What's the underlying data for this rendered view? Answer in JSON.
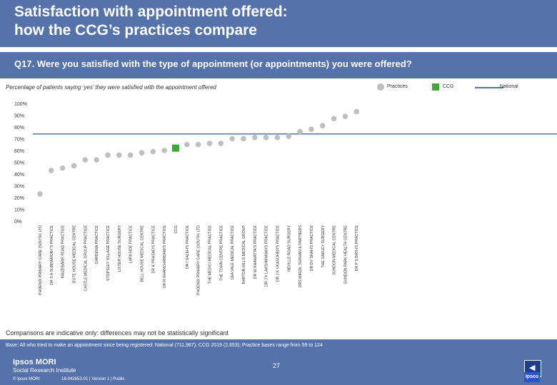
{
  "header": {
    "title_line1": "Satisfaction with appointment offered:",
    "title_line2": "how the CCG’s practices compare"
  },
  "question": "Q17. Were you satisfied with the type of appointment (or appointments) you were offered?",
  "subtitle": "Percentage of patients saying ‘yes’ they were satisfied with the appointment offered",
  "legend": {
    "practices": "Practices",
    "ccg": "CCG",
    "national": "National"
  },
  "colors": {
    "header": "#5572ab",
    "practice": "#bfbfbf",
    "ccg": "#3aaa35",
    "national": "#5572ab"
  },
  "chart_data": {
    "type": "scatter",
    "ylim": [
      0,
      100
    ],
    "y_ticks": [
      "0%",
      "10%",
      "20%",
      "30%",
      "40%",
      "50%",
      "60%",
      "70%",
      "80%",
      "90%",
      "100%"
    ],
    "national_value": 74,
    "categories": [
      "PHOENIX PRIMARY CARE (SOUTH) LTD",
      "DR S A SUBRAMONY'S PRACTICE",
      "MAIZEBARR ROAD PRACTICE",
      "BUTE HOUSE MEDICAL CENTRE",
      "CASTLE MEDICAL GROUP PRACTICE",
      "GARDENIA PRACTICE",
      "STOPSLEY VILLAGE PRACTICE",
      "LISTER HOUSE SURGERY",
      "LARKSIDE PRACTICE",
      "BELL HOUSE MEDICAL CENTRE",
      "DR K PRASAD'S PRACTICE",
      "DR R KHANCHANDANI'S PRACTICE",
      "CCG",
      "DR I SALEH'S PRACTICE",
      "PHOENIX PRIMARY CARE (SOUTH) LTD",
      "THE MEDICI MEDICAL PRACTICE",
      "THE TOWN CENTRE PRACTICE",
      "LEA VALE MEDICAL PRACTICE",
      "BARTON HILLS MEDICAL GROUP",
      "DR W KHAWATTA'S PRACTICE",
      "DR J K LAKSHMANAN'S PRACTICE",
      "DR J K UKASOHEN'S PRACTICE",
      "NEVILLE ROAD SURGERY",
      "DRS MIRZA, SUKHAN & PARTNERS",
      "DR DV SHAH'S PRACTICE",
      "THE OAKLEY SURGERY",
      "SUNDON MEDICAL CENTRE",
      "SUNDON PARK HEALTH CENTRE",
      "DR P S BATH'S PRACTICE"
    ],
    "values": [
      23,
      43,
      45,
      47,
      52,
      52,
      56,
      56,
      56,
      58,
      59,
      60,
      62,
      65,
      65,
      66,
      66,
      70,
      70,
      71,
      71,
      71,
      72,
      76,
      78,
      81,
      87,
      89,
      93
    ]
  },
  "note": "Comparisons are indicative only: differences may not be statistically significant",
  "base": "Base: All who tried to make an appointment since being registered: National (711,967); CCG 2019 (2,653); Practice bases range from 59 to 124",
  "footer": {
    "brand_line1": "Ipsos MORI",
    "brand_line2": "Social Research Institute",
    "copyright": "© Ipsos MORI",
    "job": "18-042653-01 | Version 1 | Public",
    "page_number": "27",
    "logo": "Ipsos"
  }
}
